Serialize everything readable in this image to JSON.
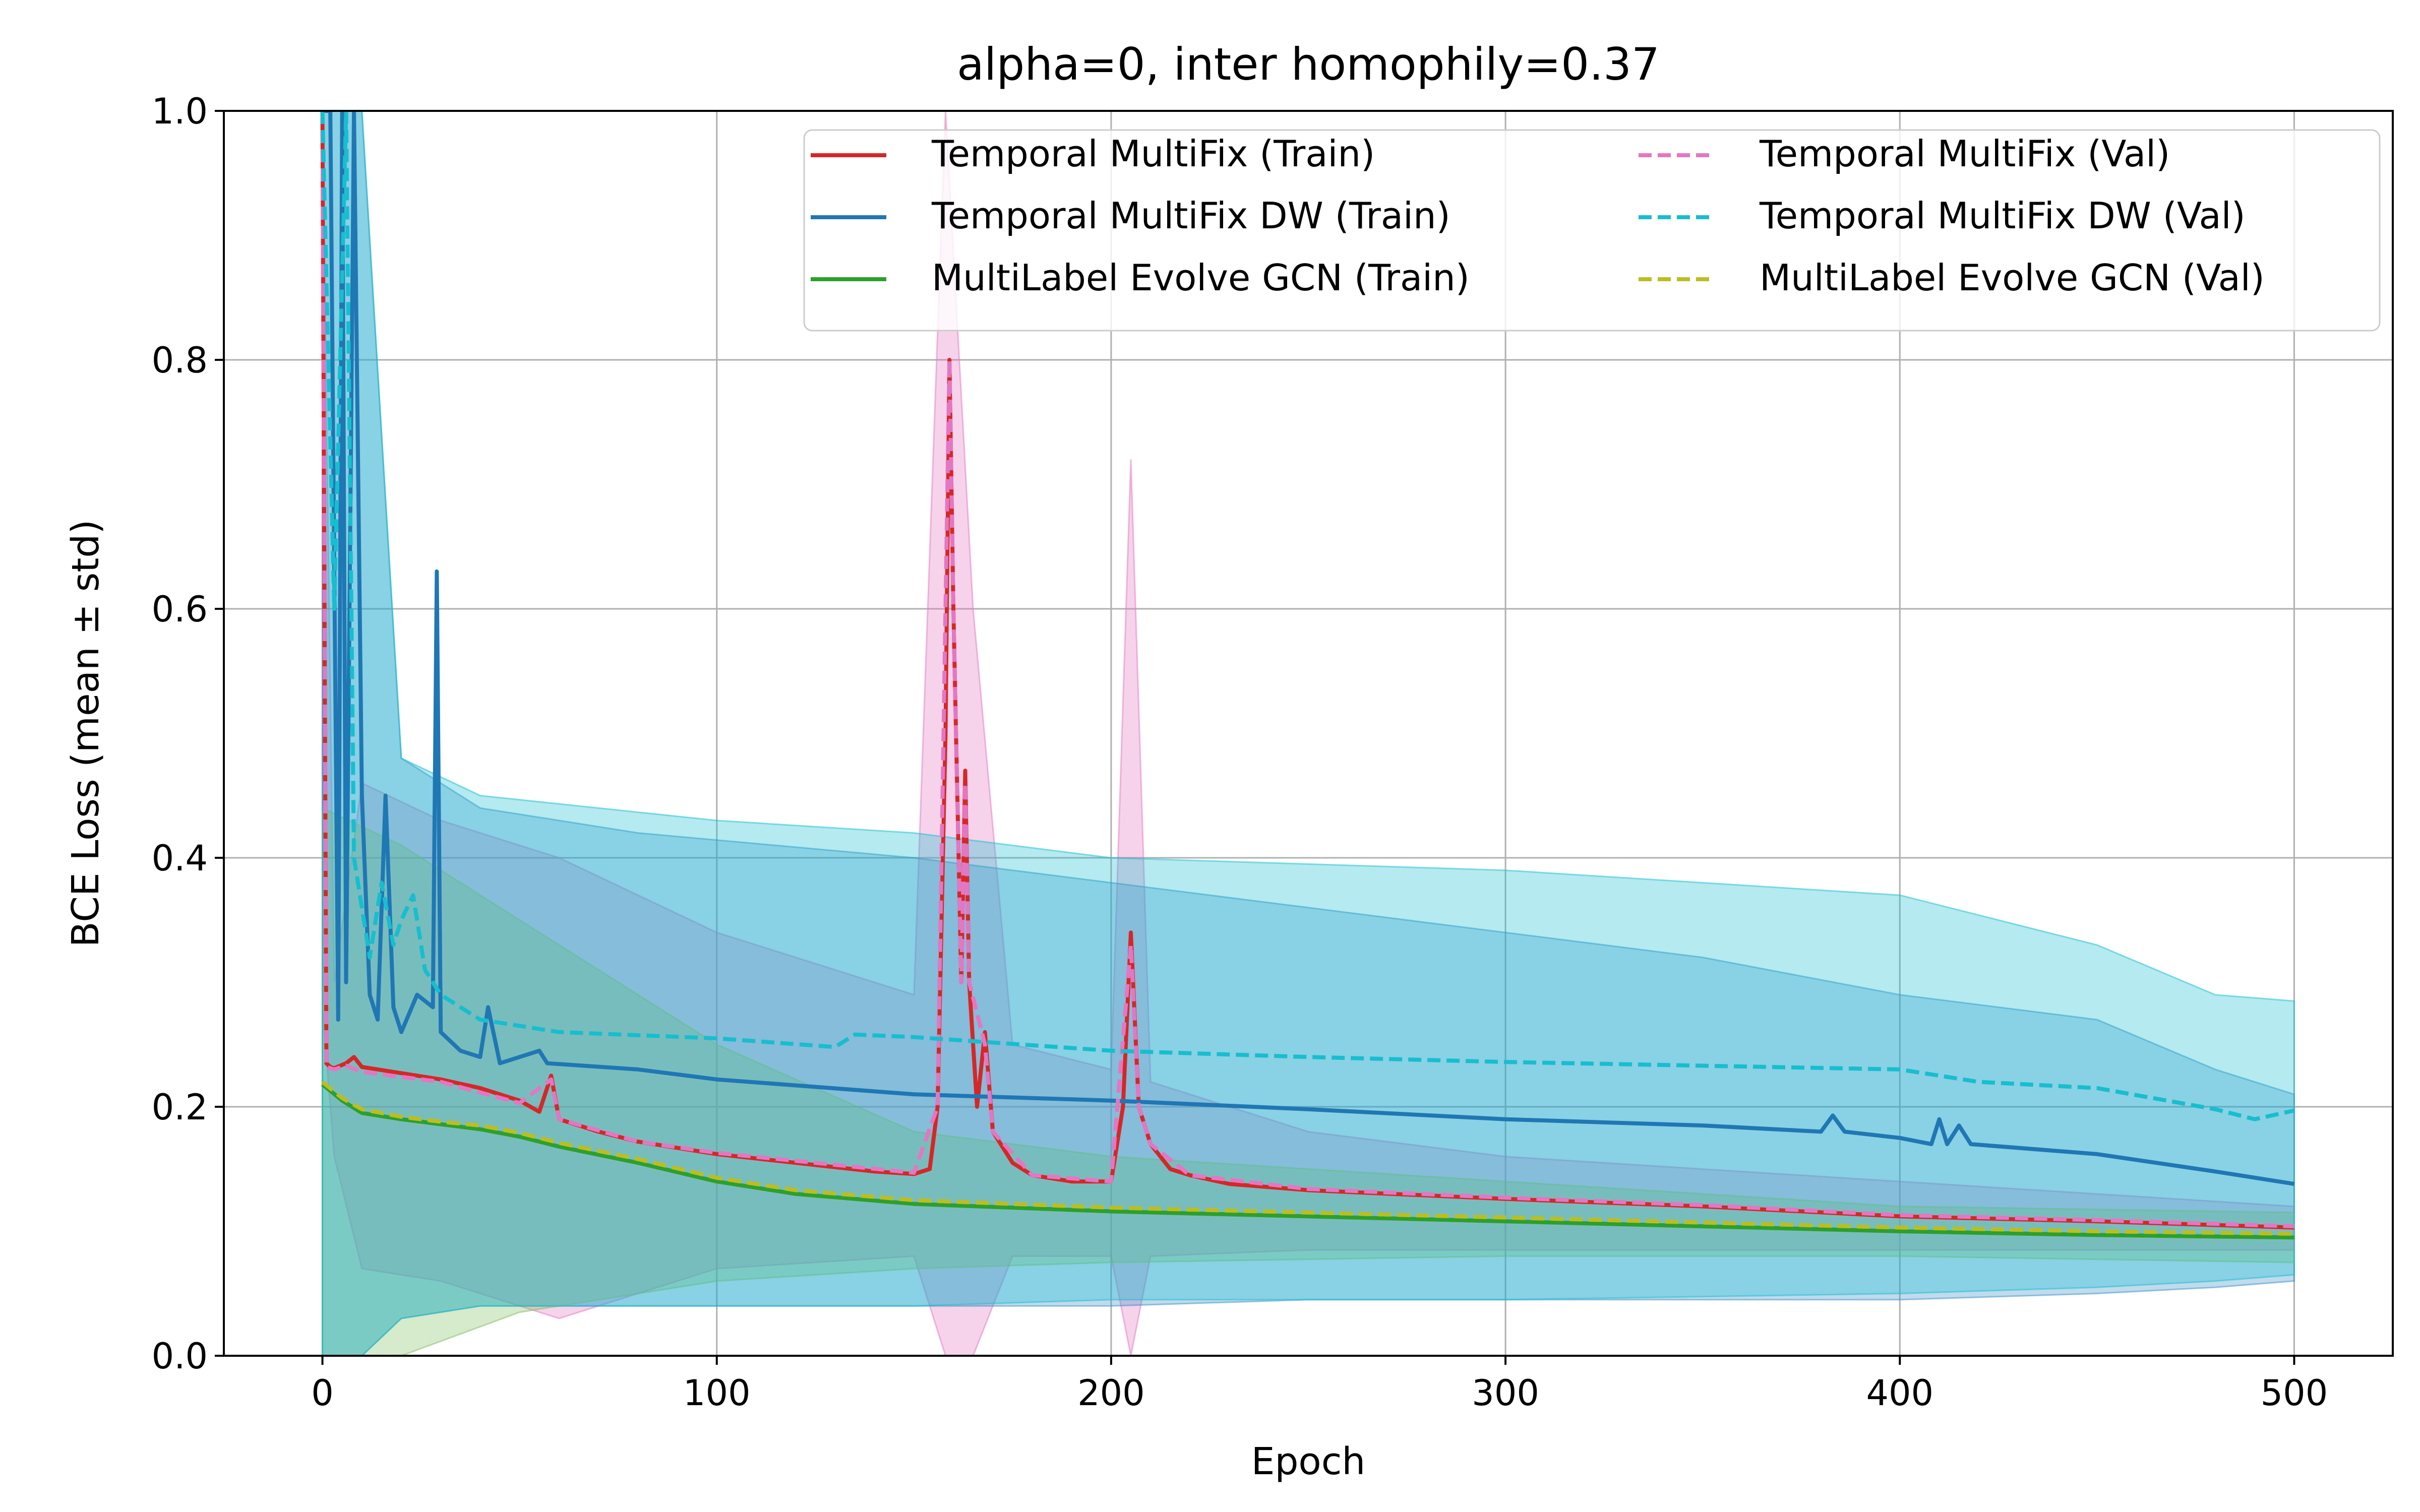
{
  "chart_data": {
    "type": "line",
    "title": "alpha=0, inter homophily=0.37",
    "xlabel": "Epoch",
    "ylabel": "BCE Loss (mean ± std)",
    "xlim": [
      -25,
      525
    ],
    "ylim": [
      0.0,
      1.0
    ],
    "xticks": [
      0,
      100,
      200,
      300,
      400,
      500
    ],
    "yticks": [
      0.0,
      0.2,
      0.4,
      0.6,
      0.8,
      1.0
    ],
    "xtick_labels": [
      "0",
      "100",
      "200",
      "300",
      "400",
      "500"
    ],
    "ytick_labels": [
      "0.0",
      "0.2",
      "0.4",
      "0.6",
      "0.8",
      "1.0"
    ],
    "grid": true,
    "legend_position": "top-right",
    "legend_columns": 2,
    "series": [
      {
        "name": "Temporal MultiFix (Train)",
        "color": "#d62728",
        "style": "solid",
        "band_color": "#e377c2",
        "points": [
          [
            0,
            1.0
          ],
          [
            1,
            0.235
          ],
          [
            2,
            0.232
          ],
          [
            3,
            0.231
          ],
          [
            6,
            0.235
          ],
          [
            8,
            0.24
          ],
          [
            10,
            0.232
          ],
          [
            20,
            0.227
          ],
          [
            30,
            0.222
          ],
          [
            40,
            0.215
          ],
          [
            50,
            0.205
          ],
          [
            55,
            0.196
          ],
          [
            58,
            0.225
          ],
          [
            60,
            0.19
          ],
          [
            70,
            0.18
          ],
          [
            80,
            0.172
          ],
          [
            100,
            0.162
          ],
          [
            120,
            0.155
          ],
          [
            140,
            0.148
          ],
          [
            150,
            0.146
          ],
          [
            154,
            0.15
          ],
          [
            156,
            0.2
          ],
          [
            158,
            0.5
          ],
          [
            159,
            0.8
          ],
          [
            160,
            0.6
          ],
          [
            162,
            0.3
          ],
          [
            163,
            0.47
          ],
          [
            164,
            0.3
          ],
          [
            166,
            0.2
          ],
          [
            168,
            0.26
          ],
          [
            170,
            0.18
          ],
          [
            175,
            0.155
          ],
          [
            180,
            0.145
          ],
          [
            190,
            0.14
          ],
          [
            200,
            0.14
          ],
          [
            203,
            0.2
          ],
          [
            205,
            0.34
          ],
          [
            207,
            0.2
          ],
          [
            210,
            0.17
          ],
          [
            215,
            0.15
          ],
          [
            220,
            0.145
          ],
          [
            230,
            0.138
          ],
          [
            250,
            0.133
          ],
          [
            300,
            0.126
          ],
          [
            350,
            0.12
          ],
          [
            400,
            0.112
          ],
          [
            450,
            0.108
          ],
          [
            500,
            0.103
          ]
        ],
        "band": [
          [
            0,
            0.28,
            1.0
          ],
          [
            3,
            0.16,
            0.3
          ],
          [
            10,
            0.07,
            0.46
          ],
          [
            30,
            0.06,
            0.43
          ],
          [
            60,
            0.03,
            0.4
          ],
          [
            100,
            0.07,
            0.34
          ],
          [
            150,
            0.08,
            0.29
          ],
          [
            158,
            0.0,
            1.0
          ],
          [
            165,
            0.0,
            0.6
          ],
          [
            175,
            0.08,
            0.25
          ],
          [
            200,
            0.08,
            0.23
          ],
          [
            205,
            0.0,
            0.72
          ],
          [
            210,
            0.08,
            0.22
          ],
          [
            250,
            0.085,
            0.18
          ],
          [
            300,
            0.085,
            0.16
          ],
          [
            400,
            0.085,
            0.14
          ],
          [
            500,
            0.085,
            0.12
          ]
        ]
      },
      {
        "name": "Temporal MultiFix DW (Train)",
        "color": "#1f77b4",
        "style": "solid",
        "band_color": "#3a8fc8",
        "points": [
          [
            0,
            1.0
          ],
          [
            2,
            1.0
          ],
          [
            4,
            0.27
          ],
          [
            5,
            1.0
          ],
          [
            6,
            0.3
          ],
          [
            8,
            1.0
          ],
          [
            10,
            0.45
          ],
          [
            12,
            0.29
          ],
          [
            14,
            0.27
          ],
          [
            16,
            0.45
          ],
          [
            18,
            0.28
          ],
          [
            20,
            0.26
          ],
          [
            24,
            0.29
          ],
          [
            28,
            0.28
          ],
          [
            29,
            0.63
          ],
          [
            30,
            0.26
          ],
          [
            35,
            0.245
          ],
          [
            40,
            0.24
          ],
          [
            42,
            0.28
          ],
          [
            45,
            0.235
          ],
          [
            55,
            0.245
          ],
          [
            57,
            0.235
          ],
          [
            80,
            0.23
          ],
          [
            100,
            0.222
          ],
          [
            150,
            0.21
          ],
          [
            200,
            0.205
          ],
          [
            250,
            0.198
          ],
          [
            300,
            0.19
          ],
          [
            350,
            0.185
          ],
          [
            380,
            0.18
          ],
          [
            383,
            0.193
          ],
          [
            386,
            0.18
          ],
          [
            400,
            0.175
          ],
          [
            408,
            0.17
          ],
          [
            410,
            0.19
          ],
          [
            412,
            0.17
          ],
          [
            415,
            0.185
          ],
          [
            418,
            0.17
          ],
          [
            450,
            0.162
          ],
          [
            480,
            0.148
          ],
          [
            500,
            0.138
          ]
        ],
        "band": [
          [
            0,
            0.0,
            1.0
          ],
          [
            10,
            0.0,
            1.0
          ],
          [
            20,
            0.03,
            0.48
          ],
          [
            40,
            0.04,
            0.44
          ],
          [
            80,
            0.04,
            0.42
          ],
          [
            150,
            0.04,
            0.4
          ],
          [
            200,
            0.04,
            0.38
          ],
          [
            250,
            0.045,
            0.36
          ],
          [
            300,
            0.045,
            0.34
          ],
          [
            350,
            0.045,
            0.32
          ],
          [
            400,
            0.045,
            0.29
          ],
          [
            450,
            0.05,
            0.27
          ],
          [
            480,
            0.055,
            0.23
          ],
          [
            500,
            0.06,
            0.21
          ]
        ]
      },
      {
        "name": "MultiLabel Evolve GCN (Train)",
        "color": "#2ca02c",
        "style": "solid",
        "band_color": "#7fbf5f",
        "points": [
          [
            0,
            0.218
          ],
          [
            5,
            0.205
          ],
          [
            10,
            0.195
          ],
          [
            20,
            0.19
          ],
          [
            30,
            0.186
          ],
          [
            40,
            0.182
          ],
          [
            50,
            0.176
          ],
          [
            60,
            0.168
          ],
          [
            80,
            0.155
          ],
          [
            100,
            0.14
          ],
          [
            120,
            0.13
          ],
          [
            150,
            0.122
          ],
          [
            200,
            0.116
          ],
          [
            250,
            0.112
          ],
          [
            300,
            0.108
          ],
          [
            350,
            0.104
          ],
          [
            400,
            0.1
          ],
          [
            450,
            0.097
          ],
          [
            500,
            0.095
          ]
        ],
        "band": [
          [
            0,
            0.0,
            0.44
          ],
          [
            20,
            0.0,
            0.41
          ],
          [
            50,
            0.035,
            0.35
          ],
          [
            100,
            0.06,
            0.25
          ],
          [
            150,
            0.07,
            0.18
          ],
          [
            200,
            0.075,
            0.16
          ],
          [
            300,
            0.08,
            0.14
          ],
          [
            400,
            0.08,
            0.12
          ],
          [
            500,
            0.075,
            0.115
          ]
        ]
      },
      {
        "name": "Temporal MultiFix (Val)",
        "color": "#e377c2",
        "style": "dashed",
        "points": [
          [
            0,
            1.0
          ],
          [
            1,
            0.232
          ],
          [
            3,
            0.23
          ],
          [
            6,
            0.233
          ],
          [
            10,
            0.228
          ],
          [
            30,
            0.22
          ],
          [
            50,
            0.203
          ],
          [
            58,
            0.222
          ],
          [
            60,
            0.19
          ],
          [
            80,
            0.172
          ],
          [
            100,
            0.163
          ],
          [
            150,
            0.147
          ],
          [
            156,
            0.2
          ],
          [
            159,
            0.8
          ],
          [
            160,
            0.6
          ],
          [
            162,
            0.3
          ],
          [
            163,
            0.46
          ],
          [
            164,
            0.3
          ],
          [
            168,
            0.25
          ],
          [
            170,
            0.18
          ],
          [
            180,
            0.145
          ],
          [
            200,
            0.14
          ],
          [
            205,
            0.33
          ],
          [
            207,
            0.2
          ],
          [
            210,
            0.17
          ],
          [
            220,
            0.145
          ],
          [
            250,
            0.134
          ],
          [
            300,
            0.127
          ],
          [
            350,
            0.121
          ],
          [
            400,
            0.113
          ],
          [
            450,
            0.109
          ],
          [
            500,
            0.104
          ]
        ]
      },
      {
        "name": "Temporal MultiFix DW (Val)",
        "color": "#17becf",
        "style": "dashed",
        "band_color": "#17becf",
        "points": [
          [
            0,
            1.0
          ],
          [
            3,
            0.6
          ],
          [
            6,
            1.0
          ],
          [
            8,
            0.4
          ],
          [
            12,
            0.32
          ],
          [
            15,
            0.38
          ],
          [
            18,
            0.33
          ],
          [
            20,
            0.35
          ],
          [
            23,
            0.37
          ],
          [
            26,
            0.31
          ],
          [
            30,
            0.29
          ],
          [
            40,
            0.27
          ],
          [
            60,
            0.26
          ],
          [
            100,
            0.255
          ],
          [
            130,
            0.248
          ],
          [
            135,
            0.258
          ],
          [
            150,
            0.256
          ],
          [
            200,
            0.245
          ],
          [
            250,
            0.24
          ],
          [
            300,
            0.236
          ],
          [
            350,
            0.233
          ],
          [
            400,
            0.23
          ],
          [
            420,
            0.22
          ],
          [
            450,
            0.215
          ],
          [
            480,
            0.198
          ],
          [
            490,
            0.19
          ],
          [
            500,
            0.197
          ]
        ],
        "band": [
          [
            0,
            0.0,
            1.0
          ],
          [
            10,
            0.0,
            1.0
          ],
          [
            20,
            0.03,
            0.48
          ],
          [
            40,
            0.04,
            0.45
          ],
          [
            100,
            0.04,
            0.43
          ],
          [
            150,
            0.04,
            0.42
          ],
          [
            200,
            0.045,
            0.4
          ],
          [
            300,
            0.045,
            0.39
          ],
          [
            400,
            0.05,
            0.37
          ],
          [
            450,
            0.055,
            0.33
          ],
          [
            480,
            0.06,
            0.29
          ],
          [
            500,
            0.065,
            0.285
          ]
        ]
      },
      {
        "name": "MultiLabel Evolve GCN (Val)",
        "color": "#bcbd22",
        "style": "dashed",
        "points": [
          [
            0,
            0.22
          ],
          [
            5,
            0.207
          ],
          [
            10,
            0.198
          ],
          [
            20,
            0.192
          ],
          [
            30,
            0.188
          ],
          [
            40,
            0.185
          ],
          [
            50,
            0.179
          ],
          [
            60,
            0.171
          ],
          [
            80,
            0.158
          ],
          [
            100,
            0.143
          ],
          [
            120,
            0.133
          ],
          [
            150,
            0.125
          ],
          [
            200,
            0.119
          ],
          [
            250,
            0.115
          ],
          [
            300,
            0.111
          ],
          [
            350,
            0.107
          ],
          [
            400,
            0.103
          ],
          [
            450,
            0.1
          ],
          [
            500,
            0.098
          ]
        ]
      }
    ]
  }
}
